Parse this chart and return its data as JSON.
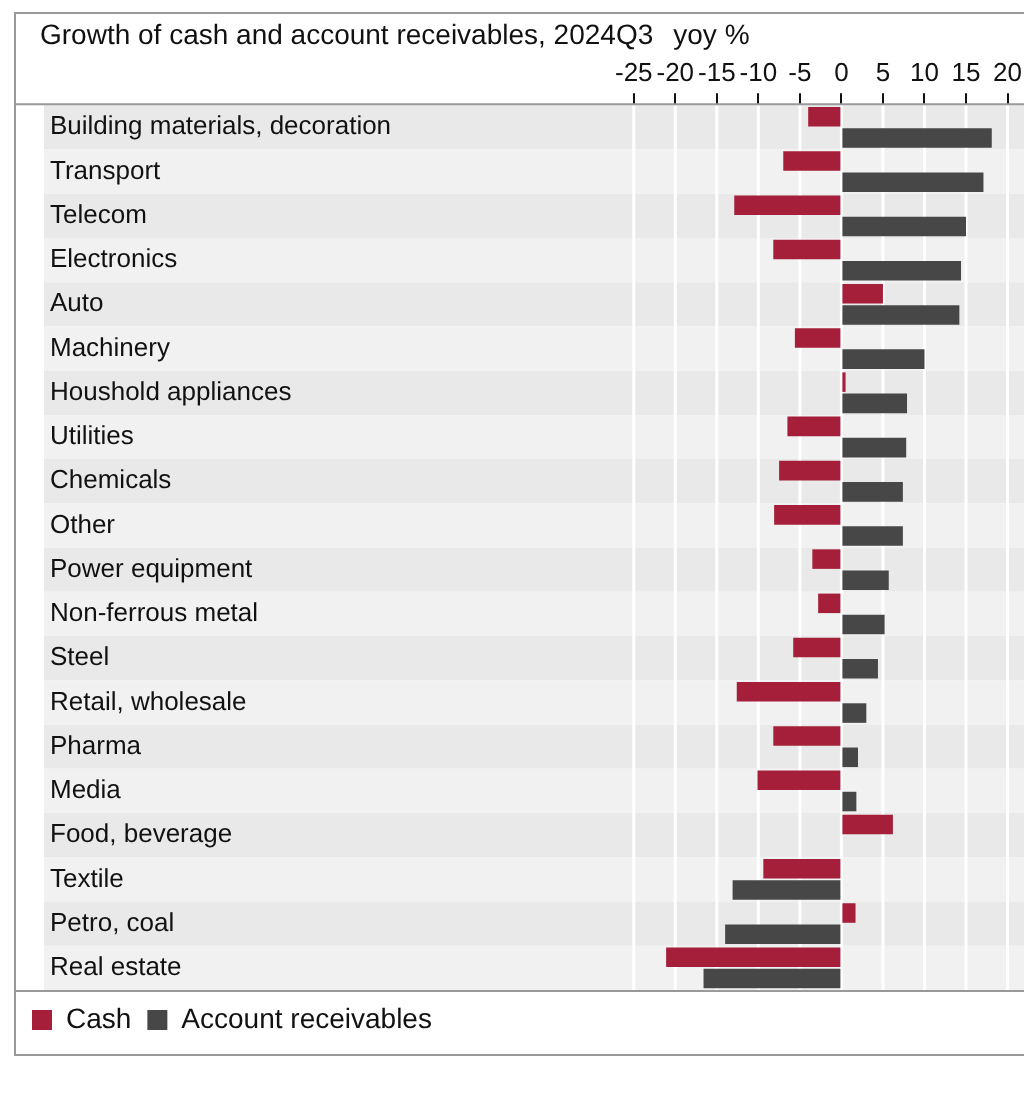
{
  "chart_data": {
    "type": "bar",
    "orientation": "horizontal",
    "title": "Growth of cash and account receivables, 2024Q3",
    "xlabel": "yoy %",
    "categories": [
      "Building materials, decoration",
      "Transport",
      "Telecom",
      "Electronics",
      "Auto",
      "Machinery",
      "Houshold appliances",
      "Utilities",
      "Chemicals",
      "Other",
      "Power equipment",
      "Non-ferrous metal",
      "Steel",
      "Retail, wholesale",
      "Pharma",
      "Media",
      "Food, beverage",
      "Textile",
      "Petro, coal",
      "Real estate"
    ],
    "series": [
      {
        "name": "Cash",
        "color": "#a51e3a",
        "values": [
          -4.0,
          -7.0,
          -12.9,
          -8.2,
          5.0,
          -5.6,
          0.5,
          -6.5,
          -7.5,
          -8.1,
          -3.5,
          -2.8,
          -5.8,
          -12.6,
          -8.2,
          -10.1,
          6.2,
          -9.4,
          1.7,
          -21.1
        ]
      },
      {
        "name": "Account receivables",
        "color": "#474747",
        "values": [
          18.1,
          17.1,
          15.0,
          14.4,
          14.2,
          10.0,
          7.9,
          7.8,
          7.4,
          7.4,
          5.7,
          5.2,
          4.4,
          3.0,
          2.0,
          1.8,
          0,
          -13.1,
          -14.0,
          -16.6
        ]
      }
    ],
    "xlim": [
      -96,
      22
    ],
    "xticks": [
      -25,
      -20,
      -15,
      -10,
      -5,
      0,
      5,
      10,
      15,
      20
    ],
    "grid": "x",
    "legend": "bottom left"
  }
}
